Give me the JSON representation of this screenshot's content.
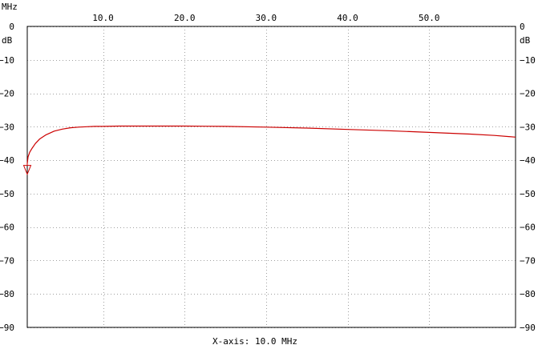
{
  "chart_data": {
    "type": "line",
    "title": "",
    "x_unit_label": "MHz",
    "y_unit_label": "dB",
    "xlabel": "X-axis: 10.0 MHz",
    "ylabel": "dB",
    "xlim": [
      0.7,
      60.6
    ],
    "ylim": [
      -90,
      0
    ],
    "x_ticks": [
      "10.0",
      "20.0",
      "30.0",
      "40.0",
      "50.0"
    ],
    "x_tick_values": [
      10,
      20,
      30,
      40,
      50
    ],
    "y_ticks": [
      "0",
      "−10",
      "−20",
      "−30",
      "−40",
      "−50",
      "−60",
      "−70",
      "−80",
      "−90"
    ],
    "y_tick_values": [
      0,
      -10,
      -20,
      -30,
      -40,
      -50,
      -60,
      -70,
      -80,
      -90
    ],
    "grid": true,
    "series": [
      {
        "color": "#cc0000",
        "x": [
          0.7,
          0.8,
          1.0,
          1.3,
          1.7,
          2.2,
          3.0,
          4.0,
          5.0,
          6.0,
          7.0,
          8.0,
          9.0,
          10.0,
          12.0,
          15.0,
          20.0,
          25.0,
          30.0,
          35.0,
          40.0,
          45.0,
          50.0,
          55.0,
          58.0,
          60.6
        ],
        "y": [
          -41.0,
          -39.0,
          -37.6,
          -36.4,
          -35.0,
          -33.7,
          -32.4,
          -31.3,
          -30.7,
          -30.3,
          -30.1,
          -30.0,
          -29.9,
          -29.9,
          -29.8,
          -29.8,
          -29.8,
          -29.9,
          -30.1,
          -30.4,
          -30.8,
          -31.2,
          -31.7,
          -32.2,
          -32.6,
          -33.1
        ]
      }
    ],
    "marker": {
      "x": 0.7,
      "y": -43.0,
      "shape": "triangle-down",
      "color": "#cc0000"
    }
  }
}
